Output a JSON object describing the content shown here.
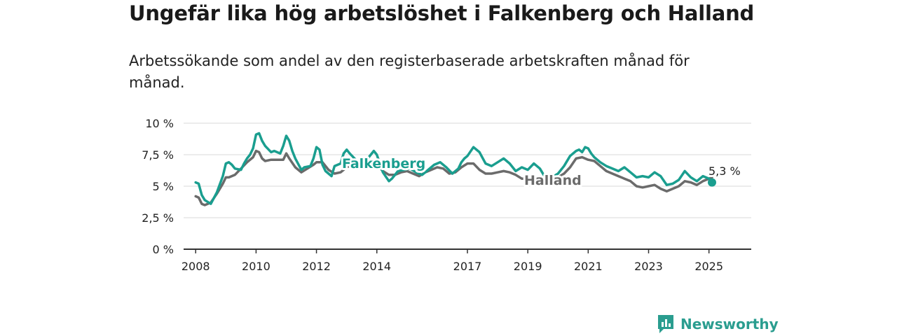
{
  "title": "Ungefär lika hög arbetslöshet i Falkenberg och Halland",
  "subtitle": "Arbetssökande som andel av den registerbaserade arbetskraften månad för månad.",
  "brand": "Newsworthy",
  "colors": {
    "falkenberg": "#1a9e8f",
    "halland": "#6b6b6b",
    "grid": "#d9d9d9",
    "axis": "#333333"
  },
  "chart_data": {
    "type": "line",
    "title": "Ungefär lika hög arbetslöshet i Falkenberg och Halland",
    "ylabel": "",
    "xlabel": "",
    "ylim": [
      0,
      10
    ],
    "xlim": [
      2007.6,
      2026.4
    ],
    "y_ticks": [
      {
        "value": 0,
        "label": "0 %"
      },
      {
        "value": 2.5,
        "label": "2,5 %"
      },
      {
        "value": 5,
        "label": "5 %"
      },
      {
        "value": 7.5,
        "label": "7,5 %"
      },
      {
        "value": 10,
        "label": "10 %"
      }
    ],
    "x_ticks": [
      {
        "value": 2008,
        "label": "2008"
      },
      {
        "value": 2010,
        "label": "2010"
      },
      {
        "value": 2012,
        "label": "2012"
      },
      {
        "value": 2014,
        "label": "2014"
      },
      {
        "value": 2017,
        "label": "2017"
      },
      {
        "value": 2019,
        "label": "2019"
      },
      {
        "value": 2021,
        "label": "2021"
      },
      {
        "value": 2023,
        "label": "2023"
      },
      {
        "value": 2025,
        "label": "2025"
      }
    ],
    "grid": true,
    "series": [
      {
        "name": "Falkenberg",
        "x": [
          2008.0,
          2008.1,
          2008.2,
          2008.3,
          2008.5,
          2008.7,
          2008.9,
          2009.0,
          2009.1,
          2009.2,
          2009.3,
          2009.5,
          2009.6,
          2009.7,
          2009.8,
          2009.9,
          2010.0,
          2010.1,
          2010.2,
          2010.3,
          2010.5,
          2010.6,
          2010.8,
          2010.9,
          2011.0,
          2011.1,
          2011.2,
          2011.3,
          2011.5,
          2011.6,
          2011.8,
          2011.9,
          2012.0,
          2012.1,
          2012.2,
          2012.3,
          2012.5,
          2012.6,
          2012.8,
          2012.9,
          2013.0,
          2013.1,
          2013.3,
          2013.5,
          2013.7,
          2013.9,
          2014.0,
          2014.2,
          2014.4,
          2014.5,
          2014.7,
          2014.9,
          2015.1,
          2015.3,
          2015.5,
          2015.7,
          2015.9,
          2016.1,
          2016.3,
          2016.5,
          2016.7,
          2016.8,
          2016.9,
          2017.0,
          2017.2,
          2017.4,
          2017.6,
          2017.8,
          2018.0,
          2018.2,
          2018.4,
          2018.6,
          2018.8,
          2019.0,
          2019.2,
          2019.4,
          2019.6,
          2019.8,
          2020.0,
          2020.2,
          2020.4,
          2020.6,
          2020.7,
          2020.8,
          2020.9,
          2021.0,
          2021.1,
          2021.2,
          2021.4,
          2021.6,
          2021.8,
          2022.0,
          2022.2,
          2022.4,
          2022.6,
          2022.8,
          2023.0,
          2023.2,
          2023.4,
          2023.6,
          2023.8,
          2024.0,
          2024.2,
          2024.4,
          2024.6,
          2024.8,
          2025.0,
          2025.1
        ],
        "values": [
          5.3,
          5.2,
          4.3,
          3.9,
          3.6,
          4.5,
          5.8,
          6.8,
          6.9,
          6.7,
          6.4,
          6.3,
          6.8,
          7.2,
          7.5,
          8.0,
          9.1,
          9.2,
          8.6,
          8.2,
          7.7,
          7.8,
          7.6,
          8.2,
          9.0,
          8.6,
          7.8,
          7.2,
          6.3,
          6.5,
          6.6,
          7.2,
          8.1,
          7.9,
          6.7,
          6.2,
          5.8,
          6.6,
          6.8,
          7.6,
          7.9,
          7.6,
          7.1,
          6.5,
          7.2,
          7.8,
          7.5,
          6.1,
          5.4,
          5.6,
          6.2,
          6.3,
          6.4,
          6.1,
          5.9,
          6.3,
          6.7,
          6.9,
          6.5,
          6.0,
          6.4,
          6.9,
          7.2,
          7.4,
          8.1,
          7.7,
          6.8,
          6.6,
          6.9,
          7.2,
          6.8,
          6.2,
          6.5,
          6.3,
          6.8,
          6.4,
          5.6,
          5.7,
          6.0,
          6.6,
          7.4,
          7.8,
          7.9,
          7.7,
          8.1,
          8.0,
          7.6,
          7.3,
          6.9,
          6.6,
          6.4,
          6.2,
          6.5,
          6.1,
          5.7,
          5.8,
          5.7,
          6.1,
          5.8,
          5.1,
          5.2,
          5.5,
          6.2,
          5.7,
          5.4,
          5.8,
          5.6,
          5.3
        ]
      },
      {
        "name": "Halland",
        "x": [
          2008.0,
          2008.1,
          2008.2,
          2008.3,
          2008.5,
          2008.7,
          2008.9,
          2009.0,
          2009.1,
          2009.3,
          2009.5,
          2009.7,
          2009.9,
          2010.0,
          2010.1,
          2010.2,
          2010.3,
          2010.5,
          2010.7,
          2010.9,
          2011.0,
          2011.1,
          2011.3,
          2011.5,
          2011.7,
          2011.9,
          2012.0,
          2012.2,
          2012.4,
          2012.6,
          2012.8,
          2013.0,
          2013.2,
          2013.4,
          2013.6,
          2013.8,
          2014.0,
          2014.2,
          2014.4,
          2014.6,
          2014.8,
          2015.0,
          2015.2,
          2015.4,
          2015.6,
          2015.8,
          2016.0,
          2016.2,
          2016.4,
          2016.6,
          2016.8,
          2017.0,
          2017.2,
          2017.4,
          2017.6,
          2017.8,
          2018.0,
          2018.2,
          2018.4,
          2018.6,
          2018.8,
          2019.0,
          2019.2,
          2019.4,
          2019.6,
          2019.8,
          2020.0,
          2020.2,
          2020.4,
          2020.6,
          2020.8,
          2021.0,
          2021.2,
          2021.4,
          2021.6,
          2021.8,
          2022.0,
          2022.2,
          2022.4,
          2022.6,
          2022.8,
          2023.0,
          2023.2,
          2023.4,
          2023.6,
          2023.8,
          2024.0,
          2024.2,
          2024.4,
          2024.6,
          2024.8,
          2025.0,
          2025.1
        ],
        "values": [
          4.2,
          4.1,
          3.6,
          3.5,
          3.7,
          4.4,
          5.2,
          5.7,
          5.7,
          5.9,
          6.4,
          6.9,
          7.3,
          7.8,
          7.7,
          7.2,
          7.0,
          7.1,
          7.1,
          7.1,
          7.6,
          7.2,
          6.5,
          6.1,
          6.4,
          6.7,
          6.9,
          6.9,
          6.3,
          6.0,
          6.1,
          6.5,
          6.7,
          6.6,
          6.4,
          6.5,
          6.7,
          6.2,
          5.9,
          5.9,
          6.1,
          6.2,
          6.0,
          5.8,
          6.1,
          6.3,
          6.5,
          6.4,
          6.0,
          6.1,
          6.5,
          6.8,
          6.8,
          6.3,
          6.0,
          6.0,
          6.1,
          6.2,
          6.1,
          5.9,
          5.6,
          5.6,
          5.8,
          5.6,
          5.3,
          5.4,
          5.7,
          6.0,
          6.5,
          7.2,
          7.3,
          7.1,
          7.0,
          6.6,
          6.2,
          6.0,
          5.8,
          5.6,
          5.4,
          5.0,
          4.9,
          5.0,
          5.1,
          4.8,
          4.6,
          4.8,
          5.0,
          5.4,
          5.3,
          5.1,
          5.4,
          5.6,
          5.7
        ]
      }
    ],
    "annotations": [
      {
        "series": "Falkenberg",
        "label": "Falkenberg"
      },
      {
        "series": "Halland",
        "label": "Halland"
      },
      {
        "series": "Falkenberg",
        "label": "5,3 %",
        "x": 2025.1,
        "y": 5.3
      }
    ]
  }
}
